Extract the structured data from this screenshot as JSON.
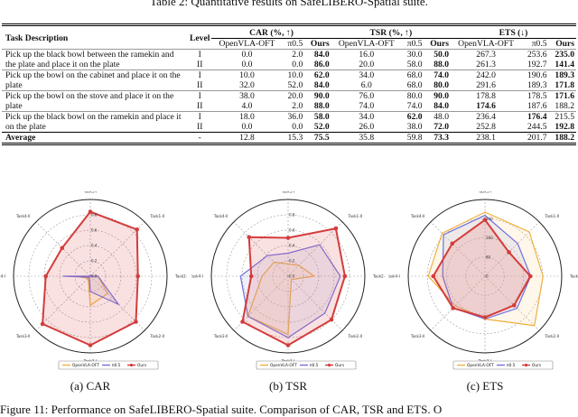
{
  "table": {
    "title": "Table 2: Quantitative results on SafeLIBERO-Spatial suite.",
    "headers": {
      "task": "Task Description",
      "level": "Level",
      "car": "CAR (%, ↑)",
      "tsr": "TSR (%, ↑)",
      "ets": "ETS (↓)",
      "sub": [
        "OpenVLA-OFT",
        "π0.5",
        "Ours"
      ]
    },
    "groups": [
      {
        "desc": "Pick up the black bowl between the ramekin and the plate and place it on the plate",
        "rows": [
          {
            "level": "I",
            "cells": [
              "0.0",
              "2.0",
              "84.0",
              "16.0",
              "30.0",
              "50.0",
              "267.3",
              "253.6",
              "235.0"
            ],
            "bold": [
              2,
              5,
              8
            ]
          },
          {
            "level": "II",
            "cells": [
              "0.0",
              "0.0",
              "86.0",
              "20.0",
              "58.0",
              "88.0",
              "261.3",
              "192.7",
              "141.4"
            ],
            "bold": [
              2,
              5,
              8
            ]
          }
        ]
      },
      {
        "desc": "Pick up the bowl on the cabinet and place it on the plate",
        "rows": [
          {
            "level": "I",
            "cells": [
              "10.0",
              "10.0",
              "62.0",
              "34.0",
              "68.0",
              "74.0",
              "242.0",
              "190.6",
              "189.3"
            ],
            "bold": [
              2,
              5,
              8
            ]
          },
          {
            "level": "II",
            "cells": [
              "32.0",
              "52.0",
              "84.0",
              "6.0",
              "68.0",
              "80.0",
              "291.6",
              "189.3",
              "171.8"
            ],
            "bold": [
              2,
              5,
              8
            ]
          }
        ]
      },
      {
        "desc": "Pick up the bowl on the stove and place it on the plate",
        "rows": [
          {
            "level": "I",
            "cells": [
              "38.0",
              "20.0",
              "90.0",
              "76.0",
              "80.0",
              "90.0",
              "178.8",
              "178.5",
              "171.6"
            ],
            "bold": [
              2,
              5,
              8
            ]
          },
          {
            "level": "II",
            "cells": [
              "4.0",
              "2.0",
              "88.0",
              "74.0",
              "74.0",
              "84.0",
              "174.6",
              "187.6",
              "188.2"
            ],
            "bold": [
              2,
              5,
              6
            ]
          }
        ]
      },
      {
        "desc": "Pick up the black bowl on the ramekin and place it on the plate",
        "rows": [
          {
            "level": "I",
            "cells": [
              "18.0",
              "36.0",
              "58.0",
              "34.0",
              "62.0",
              "48.0",
              "236.4",
              "176.4",
              "215.5"
            ],
            "bold": [
              2,
              4,
              7
            ]
          },
          {
            "level": "II",
            "cells": [
              "0.0",
              "0.0",
              "52.0",
              "26.0",
              "38.0",
              "72.0",
              "252.8",
              "244.5",
              "192.8"
            ],
            "bold": [
              2,
              5,
              8
            ]
          }
        ]
      }
    ],
    "average": {
      "label": "Average",
      "level": "-",
      "cells": [
        "12.8",
        "15.3",
        "75.5",
        "35.8",
        "59.8",
        "73.3",
        "238.1",
        "201.7",
        "188.2"
      ],
      "bold": [
        2,
        5,
        8
      ]
    }
  },
  "chart_data": [
    {
      "type": "radar",
      "subcaption": "(a) CAR",
      "axes": [
        "Task1-I",
        "Task1-II",
        "Task2-I",
        "Task2-II",
        "Task3-I",
        "Task3-II",
        "Task4-I",
        "Task4-II"
      ],
      "ticks": [
        "0.0",
        "0.2",
        "0.4",
        "0.6",
        "0.8"
      ],
      "tick_values": [
        0,
        0.2,
        0.4,
        0.6,
        0.8
      ],
      "rmax": 1.0,
      "series": [
        {
          "name": "OpenVLA-OFT",
          "color": "#f0b040",
          "values": [
            0.0,
            0.0,
            0.1,
            0.32,
            0.38,
            0.04,
            0.18,
            0.0
          ]
        },
        {
          "name": "π0.5",
          "color": "#7070e0",
          "values": [
            0.02,
            0.0,
            0.1,
            0.52,
            0.2,
            0.02,
            0.36,
            0.0
          ]
        },
        {
          "name": "Ours",
          "color": "#d43c3c",
          "values": [
            0.84,
            0.86,
            0.62,
            0.84,
            0.9,
            0.88,
            0.58,
            0.52
          ]
        }
      ]
    },
    {
      "type": "radar",
      "subcaption": "(b) TSR",
      "axes": [
        "Task1-I",
        "Task1-II",
        "Task2-I",
        "Task2-II",
        "Task3-I",
        "Task3-II",
        "Task4-I",
        "Task4-II"
      ],
      "ticks": [
        "0.0",
        "0.2",
        "0.4",
        "0.6",
        "0.8"
      ],
      "tick_values": [
        0,
        0.2,
        0.4,
        0.6,
        0.8
      ],
      "rmax": 1.0,
      "series": [
        {
          "name": "OpenVLA-OFT",
          "color": "#f0b040",
          "values": [
            0.16,
            0.2,
            0.34,
            0.06,
            0.76,
            0.74,
            0.34,
            0.26
          ]
        },
        {
          "name": "π0.5",
          "color": "#7070e0",
          "values": [
            0.3,
            0.58,
            0.68,
            0.68,
            0.8,
            0.74,
            0.62,
            0.38
          ]
        },
        {
          "name": "Ours",
          "color": "#d43c3c",
          "values": [
            0.5,
            0.88,
            0.74,
            0.8,
            0.9,
            0.84,
            0.48,
            0.72
          ]
        }
      ]
    },
    {
      "type": "radar",
      "subcaption": "(c) ETS",
      "axes": [
        "Task1-I",
        "Task1-II",
        "Task2-I",
        "Task2-II",
        "Task3-I",
        "Task3-II",
        "Task4-I",
        "Task4-II"
      ],
      "ticks": [
        "0",
        "80",
        "160",
        "240"
      ],
      "tick_values": [
        0,
        80,
        160,
        240
      ],
      "rmax": 320,
      "series": [
        {
          "name": "OpenVLA-OFT",
          "color": "#f0b040",
          "values": [
            267.3,
            261.3,
            242.0,
            291.6,
            178.8,
            174.6,
            236.4,
            252.8
          ]
        },
        {
          "name": "π0.5",
          "color": "#7070e0",
          "values": [
            253.6,
            192.7,
            190.6,
            189.3,
            178.5,
            187.6,
            176.4,
            244.5
          ]
        },
        {
          "name": "Ours",
          "color": "#d43c3c",
          "values": [
            235.0,
            141.4,
            189.3,
            171.8,
            171.6,
            188.2,
            215.5,
            192.8
          ]
        }
      ]
    }
  ],
  "figure_caption": "Figure 11: Performance on SafeLIBERO-Spatial suite. Comparison of CAR, TSR and ETS. O"
}
